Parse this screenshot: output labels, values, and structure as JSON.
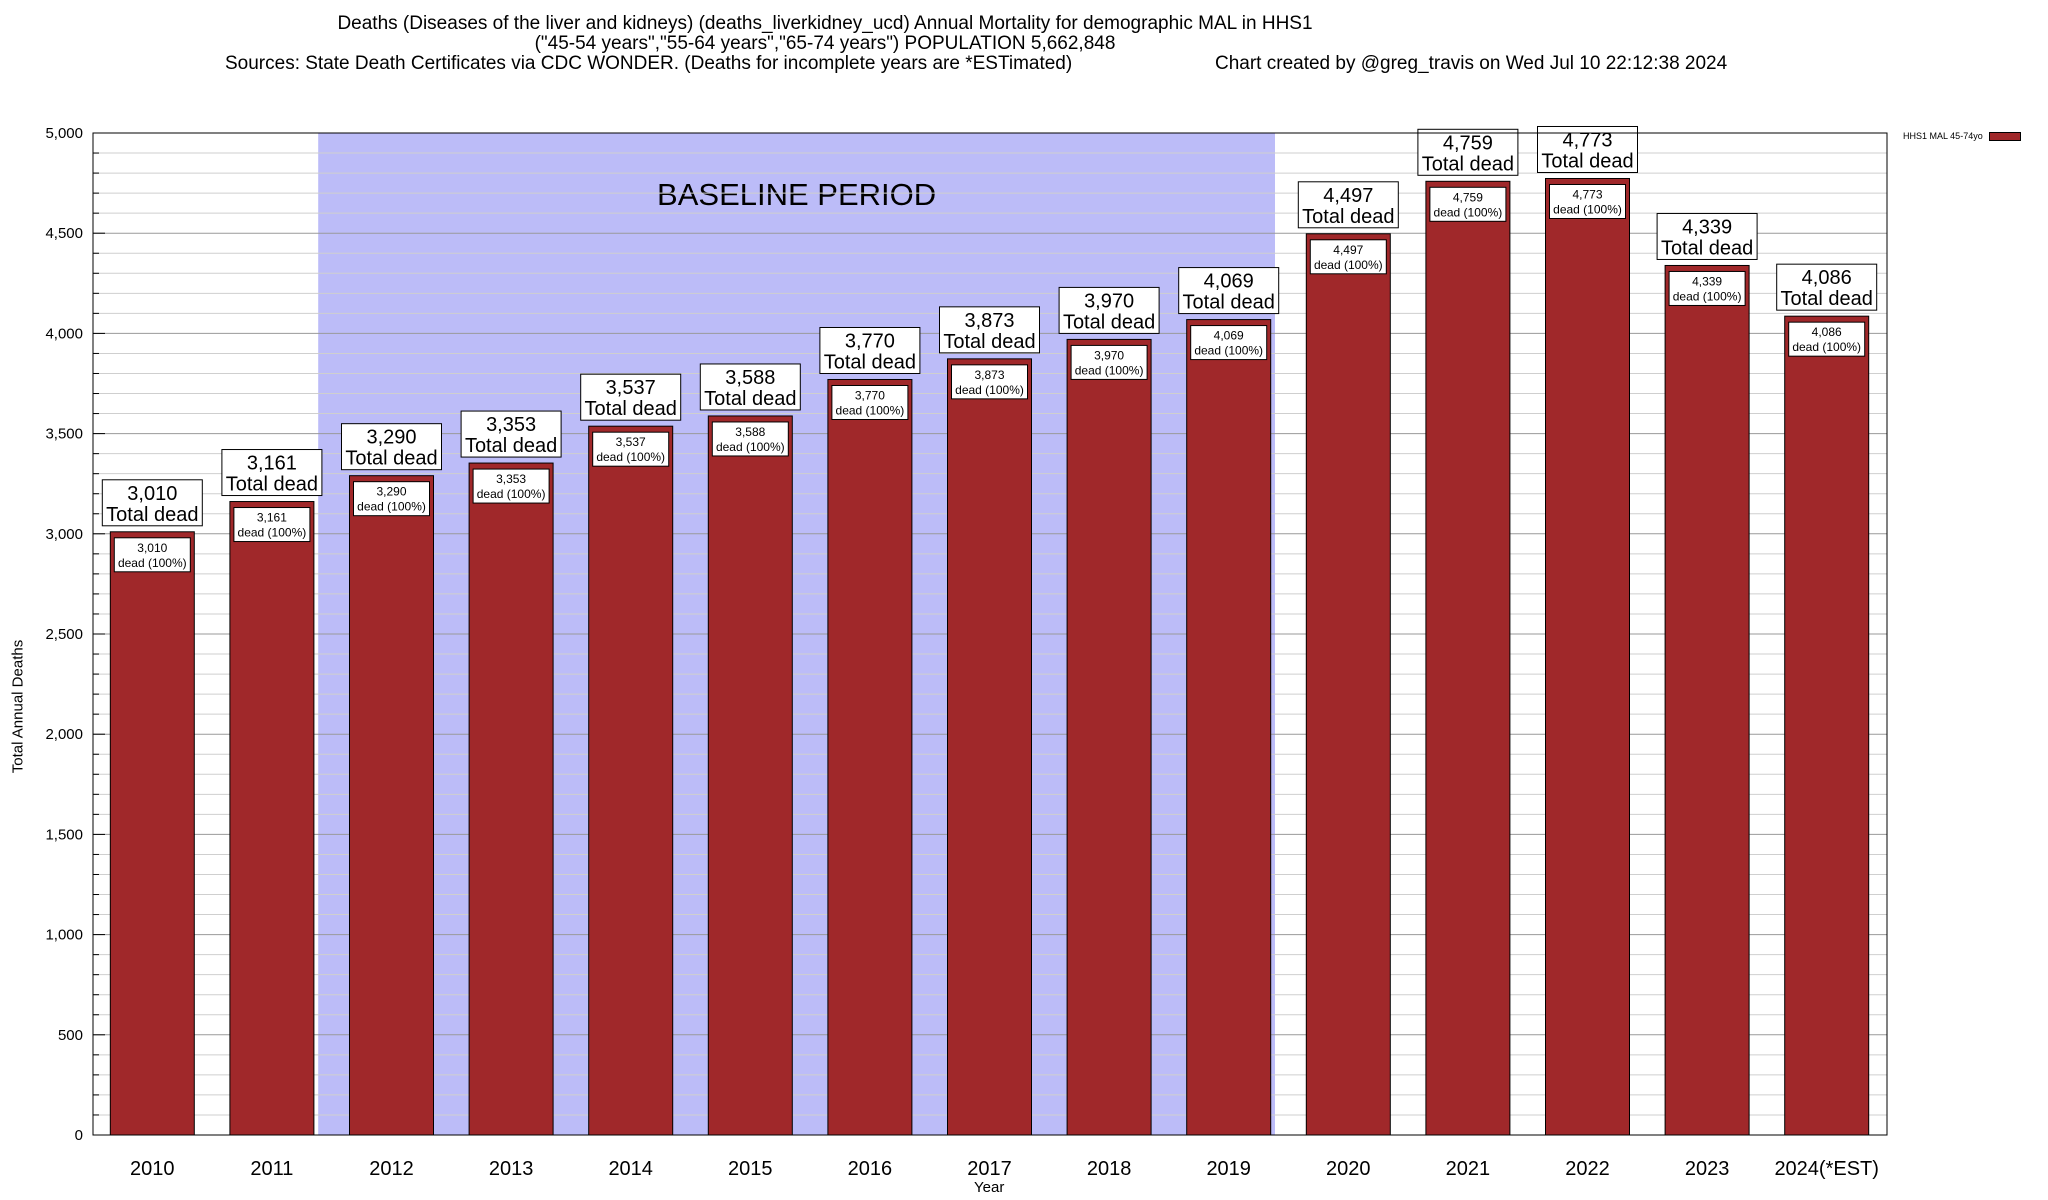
{
  "title_lines": [
    "Deaths (Diseases of the liver and kidneys) (deaths_liverkidney_ucd) Annual Mortality for demographic MAL in HHS1",
    "(\"45-54 years\",\"55-64 years\",\"65-74 years\") POPULATION 5,662,848",
    "Sources: State Death Certificates via CDC WONDER. (Deaths for incomplete years are *ESTimated)",
    "Chart created by @greg_travis on Wed Jul 10 22:12:38 2024"
  ],
  "chart_data": {
    "type": "bar",
    "categories": [
      "2010",
      "2011",
      "2012",
      "2013",
      "2014",
      "2015",
      "2016",
      "2017",
      "2018",
      "2019",
      "2020",
      "2021",
      "2022",
      "2023",
      "2024(*EST)"
    ],
    "series": [
      {
        "name": "HHS1 MAL 45-74yo",
        "color": "#a0282a",
        "values": [
          3010,
          3161,
          3290,
          3353,
          3537,
          3588,
          3770,
          3873,
          3970,
          4069,
          4497,
          4759,
          4773,
          4339,
          4086
        ]
      }
    ],
    "value_labels": [
      "3,010",
      "3,161",
      "3,290",
      "3,353",
      "3,537",
      "3,588",
      "3,770",
      "3,873",
      "3,970",
      "4,069",
      "4,497",
      "4,759",
      "4,773",
      "4,339",
      "4,086"
    ],
    "total_label": "Total dead",
    "inner_label": "dead (100%)",
    "xlabel": "Year",
    "ylabel": "Total Annual Deaths",
    "ylim": [
      0,
      5000
    ],
    "yticks": [
      0,
      500,
      1000,
      1500,
      2000,
      2500,
      3000,
      3500,
      4000,
      4500,
      5000
    ],
    "ytick_labels": [
      "0",
      "500",
      "1,000",
      "1,500",
      "2,000",
      "2,500",
      "3,000",
      "3,500",
      "4,000",
      "4,500",
      "5,000"
    ],
    "grid": true,
    "legend_position": "top-right",
    "baseline": {
      "label": "BASELINE PERIOD",
      "from": "2012",
      "to": "2019",
      "color": "#bcbcf8"
    }
  }
}
